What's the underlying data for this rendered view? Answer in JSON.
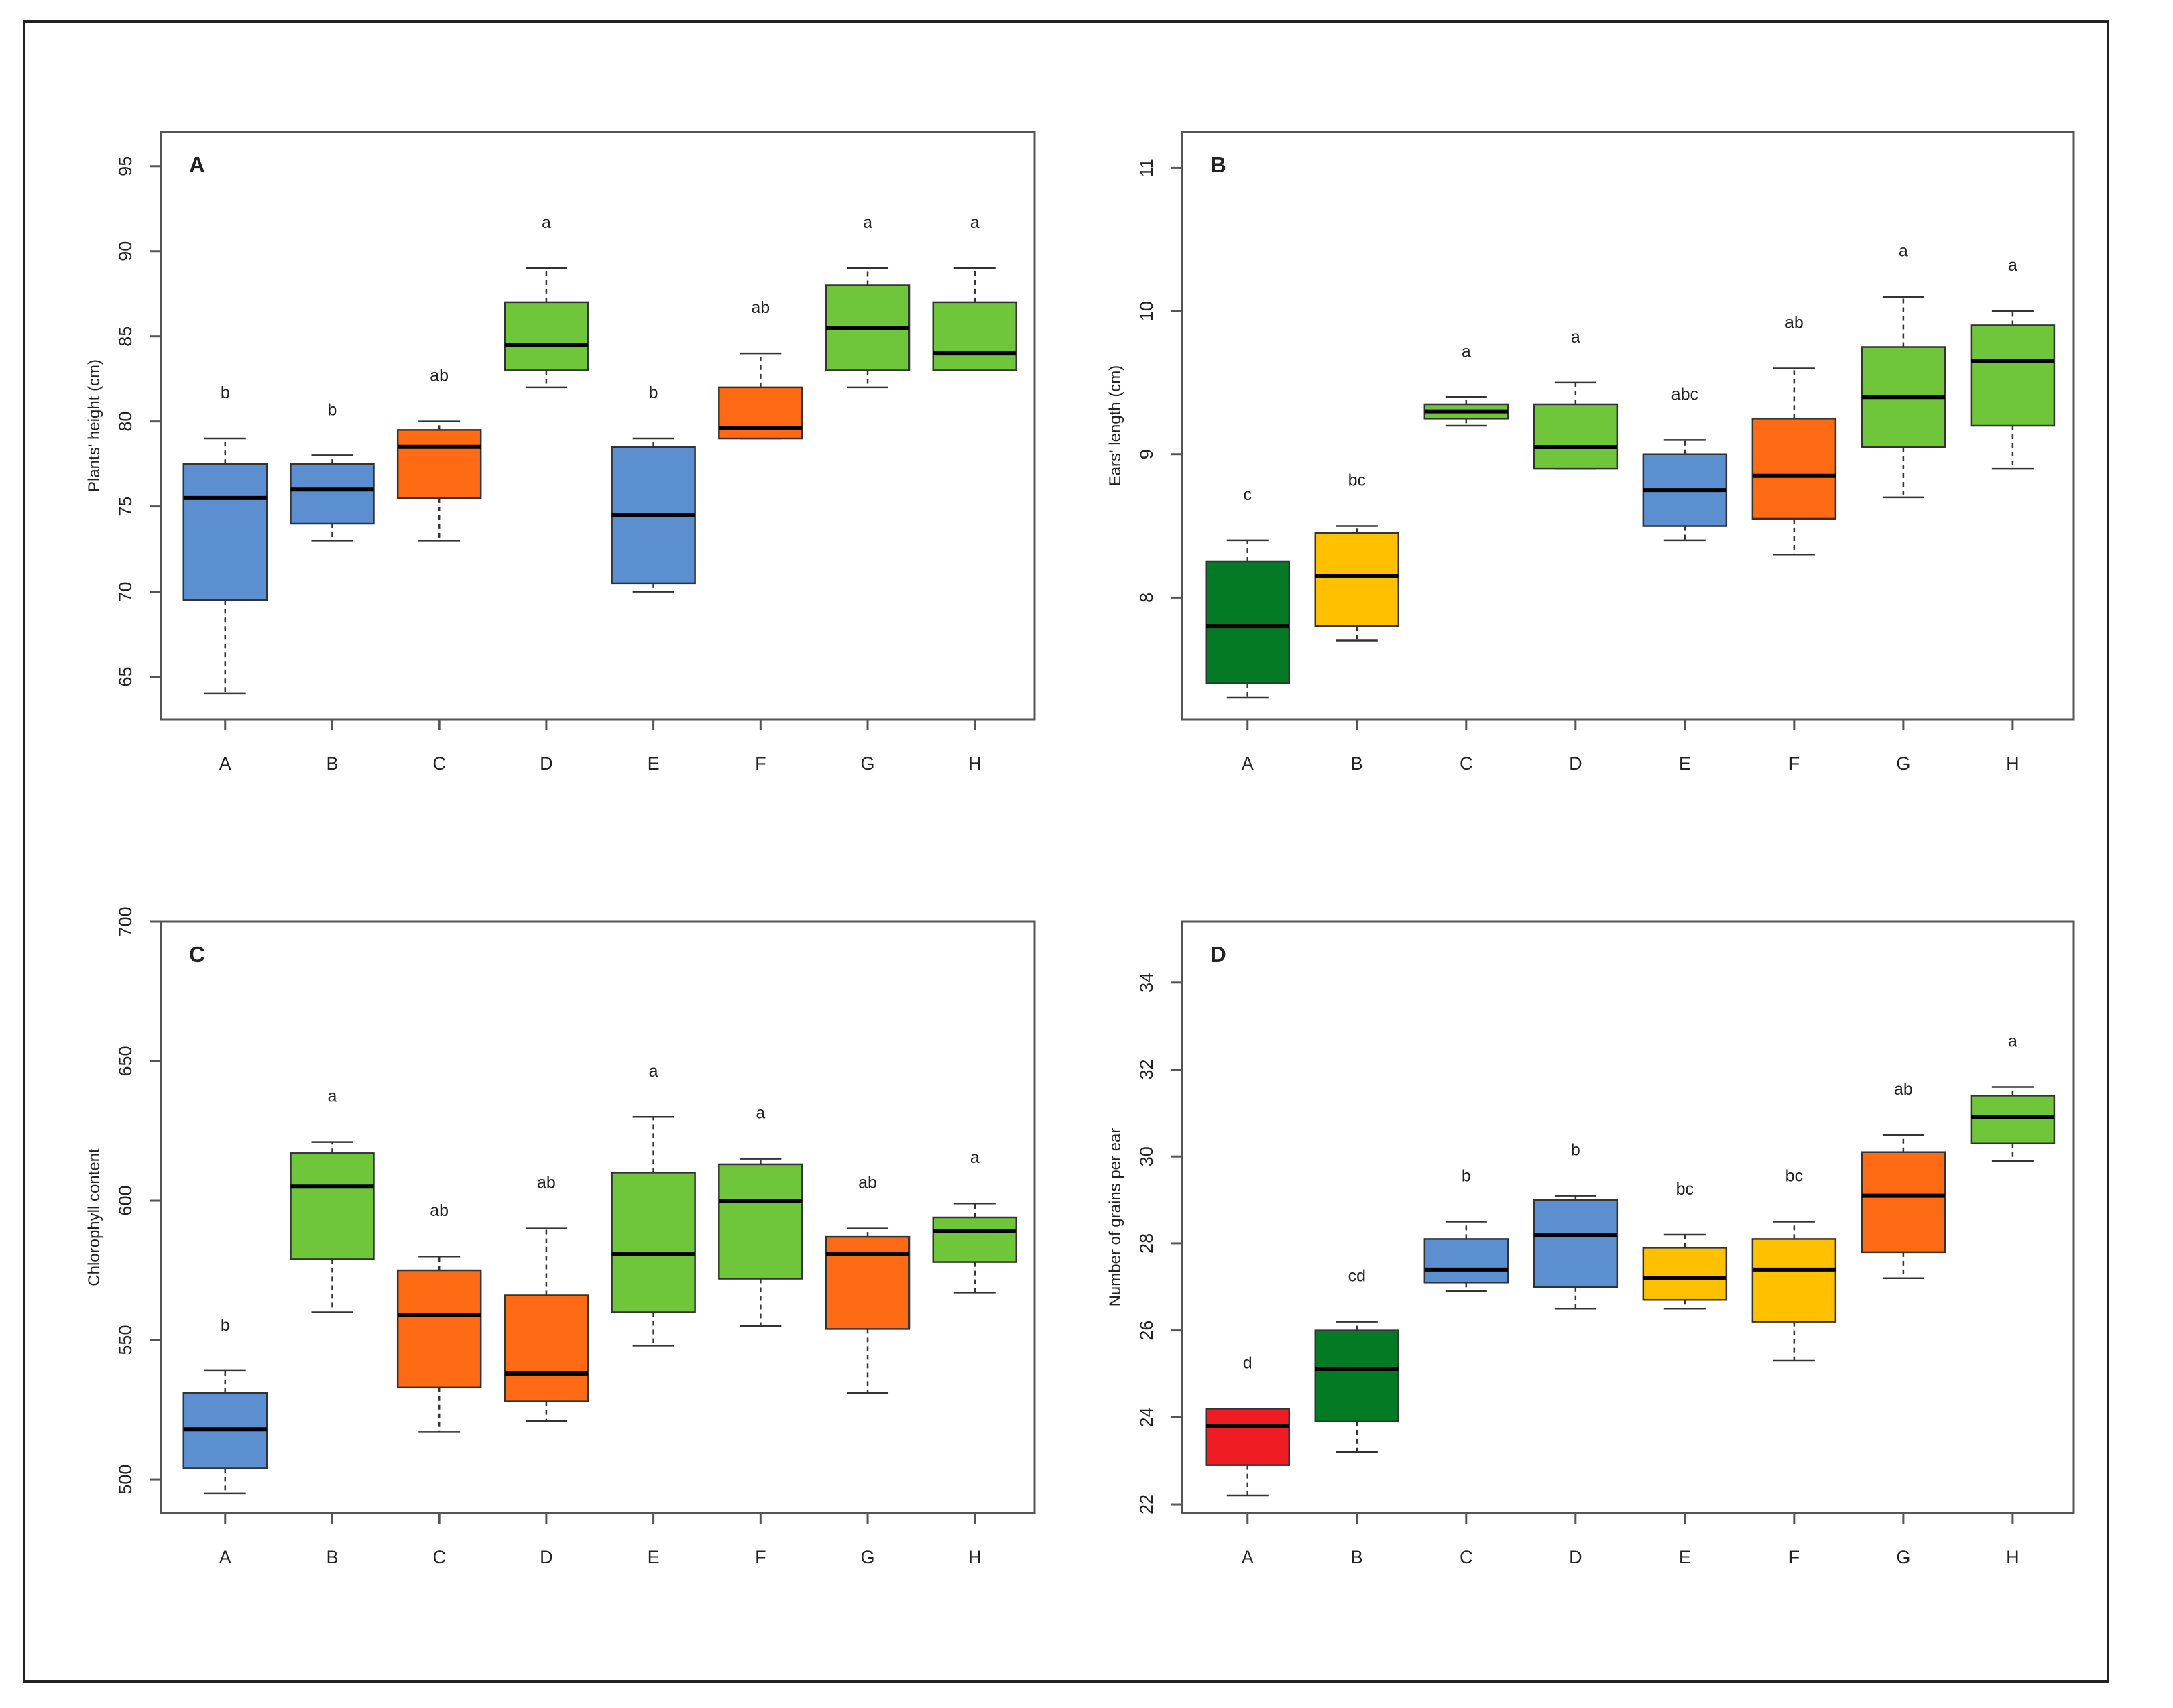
{
  "chart_data": [
    {
      "type": "box",
      "panel_label": "A",
      "title": "",
      "xlabel": "",
      "ylabel": "Plants' height (cm)",
      "ylim": [
        62.5,
        97
      ],
      "yticks": [
        65,
        70,
        75,
        80,
        85,
        90,
        95
      ],
      "categories": [
        "A",
        "B",
        "C",
        "D",
        "E",
        "F",
        "G",
        "H"
      ],
      "boxes": [
        {
          "category": "A",
          "min": 64,
          "q1": 69.5,
          "median": 75.5,
          "q3": 77.5,
          "max": 79,
          "color": "#5b8fd0",
          "letter": "b"
        },
        {
          "category": "B",
          "min": 73,
          "q1": 74,
          "median": 76,
          "q3": 77.5,
          "max": 78,
          "color": "#5b8fd0",
          "letter": "b"
        },
        {
          "category": "C",
          "min": 73,
          "q1": 75.5,
          "median": 78.5,
          "q3": 79.5,
          "max": 80,
          "color": "#ff6a14",
          "letter": "ab"
        },
        {
          "category": "D",
          "min": 82,
          "q1": 83,
          "median": 84.5,
          "q3": 87,
          "max": 89,
          "color": "#6fc63a",
          "letter": "a"
        },
        {
          "category": "E",
          "min": 70,
          "q1": 70.5,
          "median": 74.5,
          "q3": 78.5,
          "max": 79,
          "color": "#5b8fd0",
          "letter": "b"
        },
        {
          "category": "F",
          "min": 79,
          "q1": 79,
          "median": 79.6,
          "q3": 82,
          "max": 84,
          "color": "#ff6a14",
          "letter": "ab"
        },
        {
          "category": "G",
          "min": 82,
          "q1": 83,
          "median": 85.5,
          "q3": 88,
          "max": 89,
          "color": "#6fc63a",
          "letter": "a"
        },
        {
          "category": "H",
          "min": 83,
          "q1": 83,
          "median": 84,
          "q3": 87,
          "max": 89,
          "color": "#6fc63a",
          "letter": "a"
        }
      ]
    },
    {
      "type": "box",
      "panel_label": "B",
      "title": "",
      "xlabel": "",
      "ylabel": "Ears' length (cm)",
      "ylim": [
        7.15,
        11.25
      ],
      "yticks": [
        8,
        9,
        10,
        11
      ],
      "categories": [
        "A",
        "B",
        "C",
        "D",
        "E",
        "F",
        "G",
        "H"
      ],
      "boxes": [
        {
          "category": "A",
          "min": 7.3,
          "q1": 7.4,
          "median": 7.8,
          "q3": 8.25,
          "max": 8.4,
          "color": "#047a25",
          "letter": "c"
        },
        {
          "category": "B",
          "min": 7.7,
          "q1": 7.8,
          "median": 8.15,
          "q3": 8.45,
          "max": 8.5,
          "color": "#ffc000",
          "letter": "bc"
        },
        {
          "category": "C",
          "min": 9.2,
          "q1": 9.25,
          "median": 9.3,
          "q3": 9.35,
          "max": 9.4,
          "color": "#6fc63a",
          "letter": "a"
        },
        {
          "category": "D",
          "min": 8.9,
          "q1": 8.9,
          "median": 9.05,
          "q3": 9.35,
          "max": 9.5,
          "color": "#6fc63a",
          "letter": "a"
        },
        {
          "category": "E",
          "min": 8.4,
          "q1": 8.5,
          "median": 8.75,
          "q3": 9.0,
          "max": 9.1,
          "color": "#5b8fd0",
          "letter": "abc"
        },
        {
          "category": "F",
          "min": 8.3,
          "q1": 8.55,
          "median": 8.85,
          "q3": 9.25,
          "max": 9.6,
          "color": "#ff6a14",
          "letter": "ab"
        },
        {
          "category": "G",
          "min": 8.7,
          "q1": 9.05,
          "median": 9.4,
          "q3": 9.75,
          "max": 10.1,
          "color": "#6fc63a",
          "letter": "a"
        },
        {
          "category": "H",
          "min": 8.9,
          "q1": 9.2,
          "median": 9.65,
          "q3": 9.9,
          "max": 10.0,
          "color": "#6fc63a",
          "letter": "a"
        }
      ]
    },
    {
      "type": "box",
      "panel_label": "C",
      "title": "",
      "xlabel": "",
      "ylabel": "Chlorophyll content",
      "ylim": [
        488,
        700
      ],
      "yticks": [
        500,
        550,
        600,
        650,
        700
      ],
      "categories": [
        "A",
        "B",
        "C",
        "D",
        "E",
        "F",
        "G",
        "H"
      ],
      "boxes": [
        {
          "category": "A",
          "min": 495,
          "q1": 504,
          "median": 518,
          "q3": 531,
          "max": 539,
          "color": "#5b8fd0",
          "letter": "b"
        },
        {
          "category": "B",
          "min": 560,
          "q1": 579,
          "median": 605,
          "q3": 617,
          "max": 621,
          "color": "#6fc63a",
          "letter": "a"
        },
        {
          "category": "C",
          "min": 517,
          "q1": 533,
          "median": 559,
          "q3": 575,
          "max": 580,
          "color": "#ff6a14",
          "letter": "ab"
        },
        {
          "category": "D",
          "min": 521,
          "q1": 528,
          "median": 538,
          "q3": 566,
          "max": 590,
          "color": "#ff6a14",
          "letter": "ab"
        },
        {
          "category": "E",
          "min": 548,
          "q1": 560,
          "median": 581,
          "q3": 610,
          "max": 630,
          "color": "#6fc63a",
          "letter": "a"
        },
        {
          "category": "F",
          "min": 555,
          "q1": 572,
          "median": 600,
          "q3": 613,
          "max": 615,
          "color": "#6fc63a",
          "letter": "a"
        },
        {
          "category": "G",
          "min": 531,
          "q1": 554,
          "median": 581,
          "q3": 587,
          "max": 590,
          "color": "#ff6a14",
          "letter": "ab"
        },
        {
          "category": "H",
          "min": 567,
          "q1": 578,
          "median": 589,
          "q3": 594,
          "max": 599,
          "color": "#6fc63a",
          "letter": "a"
        }
      ]
    },
    {
      "type": "box",
      "panel_label": "D",
      "title": "",
      "xlabel": "",
      "ylabel": "Number of grains per ear",
      "ylim": [
        21.8,
        35.4
      ],
      "yticks": [
        22,
        24,
        26,
        28,
        30,
        32,
        34
      ],
      "categories": [
        "A",
        "B",
        "C",
        "D",
        "E",
        "F",
        "G",
        "H"
      ],
      "boxes": [
        {
          "category": "A",
          "min": 22.2,
          "q1": 22.9,
          "median": 23.8,
          "q3": 24.2,
          "max": 24.2,
          "color": "#f01c24",
          "letter": "d"
        },
        {
          "category": "B",
          "min": 23.2,
          "q1": 23.9,
          "median": 25.1,
          "q3": 26.0,
          "max": 26.2,
          "color": "#047a25",
          "letter": "cd"
        },
        {
          "category": "C",
          "min": 26.9,
          "q1": 27.1,
          "median": 27.4,
          "q3": 28.1,
          "max": 28.5,
          "color": "#5b8fd0",
          "letter": "b"
        },
        {
          "category": "D",
          "min": 26.5,
          "q1": 27.0,
          "median": 28.2,
          "q3": 29.0,
          "max": 29.1,
          "color": "#5b8fd0",
          "letter": "b"
        },
        {
          "category": "E",
          "min": 26.5,
          "q1": 26.7,
          "median": 27.2,
          "q3": 27.9,
          "max": 28.2,
          "color": "#ffc000",
          "letter": "bc"
        },
        {
          "category": "F",
          "min": 25.3,
          "q1": 26.2,
          "median": 27.4,
          "q3": 28.1,
          "max": 28.5,
          "color": "#ffc000",
          "letter": "bc"
        },
        {
          "category": "G",
          "min": 27.2,
          "q1": 27.8,
          "median": 29.1,
          "q3": 30.1,
          "max": 30.5,
          "color": "#ff6a14",
          "letter": "ab"
        },
        {
          "category": "H",
          "min": 29.9,
          "q1": 30.3,
          "median": 30.9,
          "q3": 31.4,
          "max": 31.6,
          "color": "#6fc63a",
          "letter": "a"
        }
      ]
    }
  ]
}
